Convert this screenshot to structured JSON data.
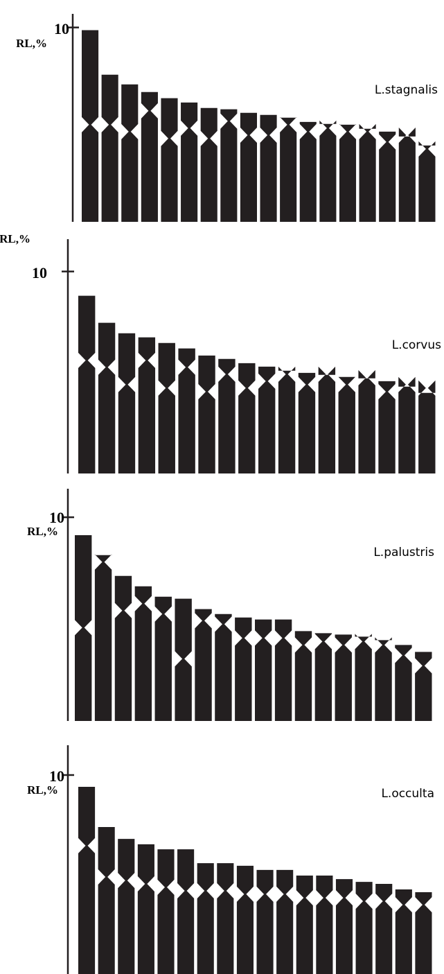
{
  "chart_data": [
    {
      "type": "idiogram",
      "title": "L.stagnalis",
      "ylabel": "RL,%",
      "color": "#231f20",
      "ylim": [
        0,
        10.7
      ],
      "yticks": [
        10
      ],
      "values": [
        9.86,
        7.57,
        7.07,
        6.68,
        6.36,
        6.14,
        5.86,
        5.79,
        5.61,
        5.5,
        5.36,
        5.14,
        5.04,
        5.0,
        4.79,
        4.64,
        4.39,
        3.93
      ],
      "centromere": [
        5.0,
        5.0,
        4.64,
        5.71,
        4.29,
        4.82,
        4.29,
        5.18,
        4.46,
        4.46,
        5.0,
        4.64,
        4.82,
        4.64,
        4.64,
        4.11,
        4.46,
        3.75
      ]
    },
    {
      "type": "idiogram",
      "title": "L.corvus",
      "ylabel": "RL,%",
      "color": "#231f20",
      "ylim": [
        0,
        11.6
      ],
      "yticks": [
        10
      ],
      "values": [
        8.8,
        7.46,
        6.94,
        6.74,
        6.46,
        6.19,
        5.84,
        5.67,
        5.46,
        5.29,
        5.09,
        4.98,
        4.88,
        4.78,
        4.71,
        4.57,
        4.3,
        3.99
      ],
      "centromere": [
        5.6,
        5.26,
        4.4,
        5.6,
        4.23,
        5.26,
        4.05,
        4.91,
        4.23,
        4.57,
        4.91,
        4.4,
        4.91,
        4.4,
        4.74,
        4.05,
        4.4,
        4.23
      ]
    },
    {
      "type": "idiogram",
      "title": "L.palustris",
      "ylabel": "RL,%",
      "color": "#231f20",
      "ylim": [
        0,
        11.4
      ],
      "yticks": [
        10
      ],
      "values": [
        9.12,
        8.14,
        7.12,
        6.61,
        6.1,
        6.0,
        5.49,
        5.25,
        5.08,
        4.98,
        4.98,
        4.41,
        4.31,
        4.24,
        4.14,
        3.97,
        3.73,
        3.39
      ],
      "centromere": [
        4.58,
        7.8,
        5.42,
        5.76,
        5.25,
        3.05,
        4.92,
        4.75,
        4.07,
        4.07,
        4.07,
        3.73,
        3.9,
        3.73,
        3.9,
        3.73,
        3.22,
        2.71
      ]
    },
    {
      "type": "idiogram",
      "title": "L.occulta",
      "ylabel": "RL,%",
      "color": "#231f20",
      "ylim": [
        0,
        11.5
      ],
      "yticks": [
        10
      ],
      "values": [
        9.41,
        7.39,
        6.79,
        6.52,
        6.27,
        6.27,
        5.57,
        5.57,
        5.44,
        5.23,
        5.23,
        4.95,
        4.95,
        4.77,
        4.63,
        4.53,
        4.25,
        4.11
      ],
      "centromere": [
        6.45,
        4.88,
        4.7,
        4.53,
        4.36,
        4.18,
        4.18,
        4.18,
        4.01,
        4.01,
        4.01,
        3.83,
        3.83,
        3.83,
        3.66,
        3.66,
        3.48,
        3.48
      ]
    }
  ]
}
